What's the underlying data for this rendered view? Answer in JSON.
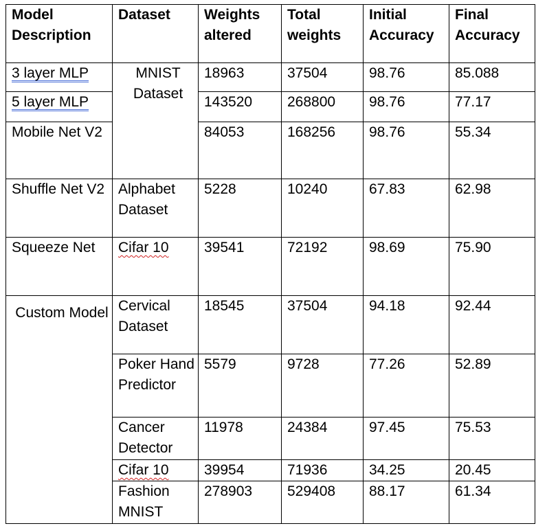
{
  "table": {
    "headers": [
      "Model Description",
      "Dataset",
      "Weights altered",
      "Total weights",
      "Initial Accuracy",
      "Final Accuracy"
    ],
    "groups": {
      "mnist": "MNIST Dataset",
      "custom": "Custom Model"
    },
    "rows": [
      {
        "model": "3 layer MLP",
        "weights_altered": "18963",
        "total_weights": "37504",
        "initial_accuracy": "98.76",
        "final_accuracy": "85.088"
      },
      {
        "model": "5 layer MLP",
        "weights_altered": "143520",
        "total_weights": "268800",
        "initial_accuracy": "98.76",
        "final_accuracy": "77.17"
      },
      {
        "model": "Mobile Net V2",
        "weights_altered": "84053",
        "total_weights": "168256",
        "initial_accuracy": "98.76",
        "final_accuracy": "55.34"
      },
      {
        "model": "Shuffle Net V2",
        "dataset": "Alphabet Dataset",
        "weights_altered": "5228",
        "total_weights": "10240",
        "initial_accuracy": "67.83",
        "final_accuracy": "62.98"
      },
      {
        "model": "Squeeze Net",
        "dataset": "Cifar 10",
        "weights_altered": "39541",
        "total_weights": "72192",
        "initial_accuracy": "98.69",
        "final_accuracy": "75.90"
      },
      {
        "dataset": "Cervical Dataset",
        "weights_altered": "18545",
        "total_weights": "37504",
        "initial_accuracy": "94.18",
        "final_accuracy": "92.44"
      },
      {
        "dataset": "Poker Hand Predictor",
        "weights_altered": "5579",
        "total_weights": "9728",
        "initial_accuracy": "77.26",
        "final_accuracy": "52.89"
      },
      {
        "dataset": "Cancer Detector",
        "weights_altered": "11978",
        "total_weights": "24384",
        "initial_accuracy": "97.45",
        "final_accuracy": "75.53"
      },
      {
        "dataset": "Cifar 10",
        "weights_altered": "39954",
        "total_weights": "71936",
        "initial_accuracy": "34.25",
        "final_accuracy": "20.45"
      },
      {
        "dataset": "Fashion MNIST",
        "weights_altered": "278903",
        "total_weights": "529408",
        "initial_accuracy": "88.17",
        "final_accuracy": "61.34"
      }
    ]
  }
}
